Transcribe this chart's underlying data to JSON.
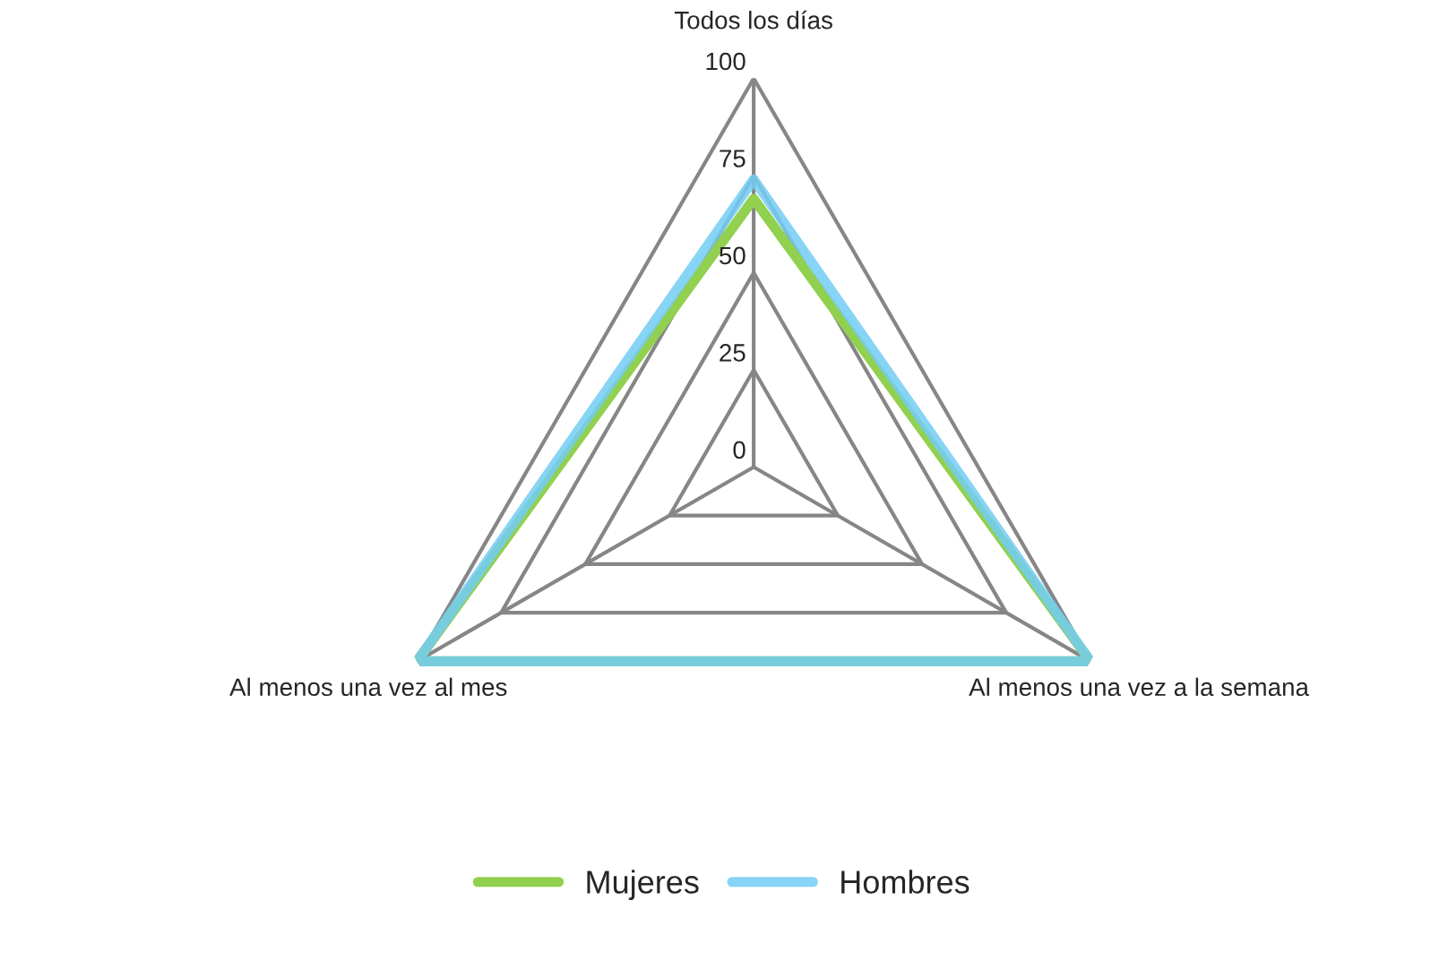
{
  "chart_data": {
    "type": "radar",
    "categories": [
      "Todos los días",
      "Al menos una vez a la semana",
      "Al menos una vez al mes"
    ],
    "series": [
      {
        "name": "Mujeres",
        "color": "#92d050",
        "values": [
          69,
          100,
          100
        ]
      },
      {
        "name": "Hombres",
        "color": "#72cdf4",
        "values": [
          74,
          100,
          100
        ]
      }
    ],
    "ylim": [
      0,
      100
    ],
    "yticks": [
      0,
      25,
      50,
      75,
      100
    ],
    "grid": true,
    "legend": "bottom"
  }
}
